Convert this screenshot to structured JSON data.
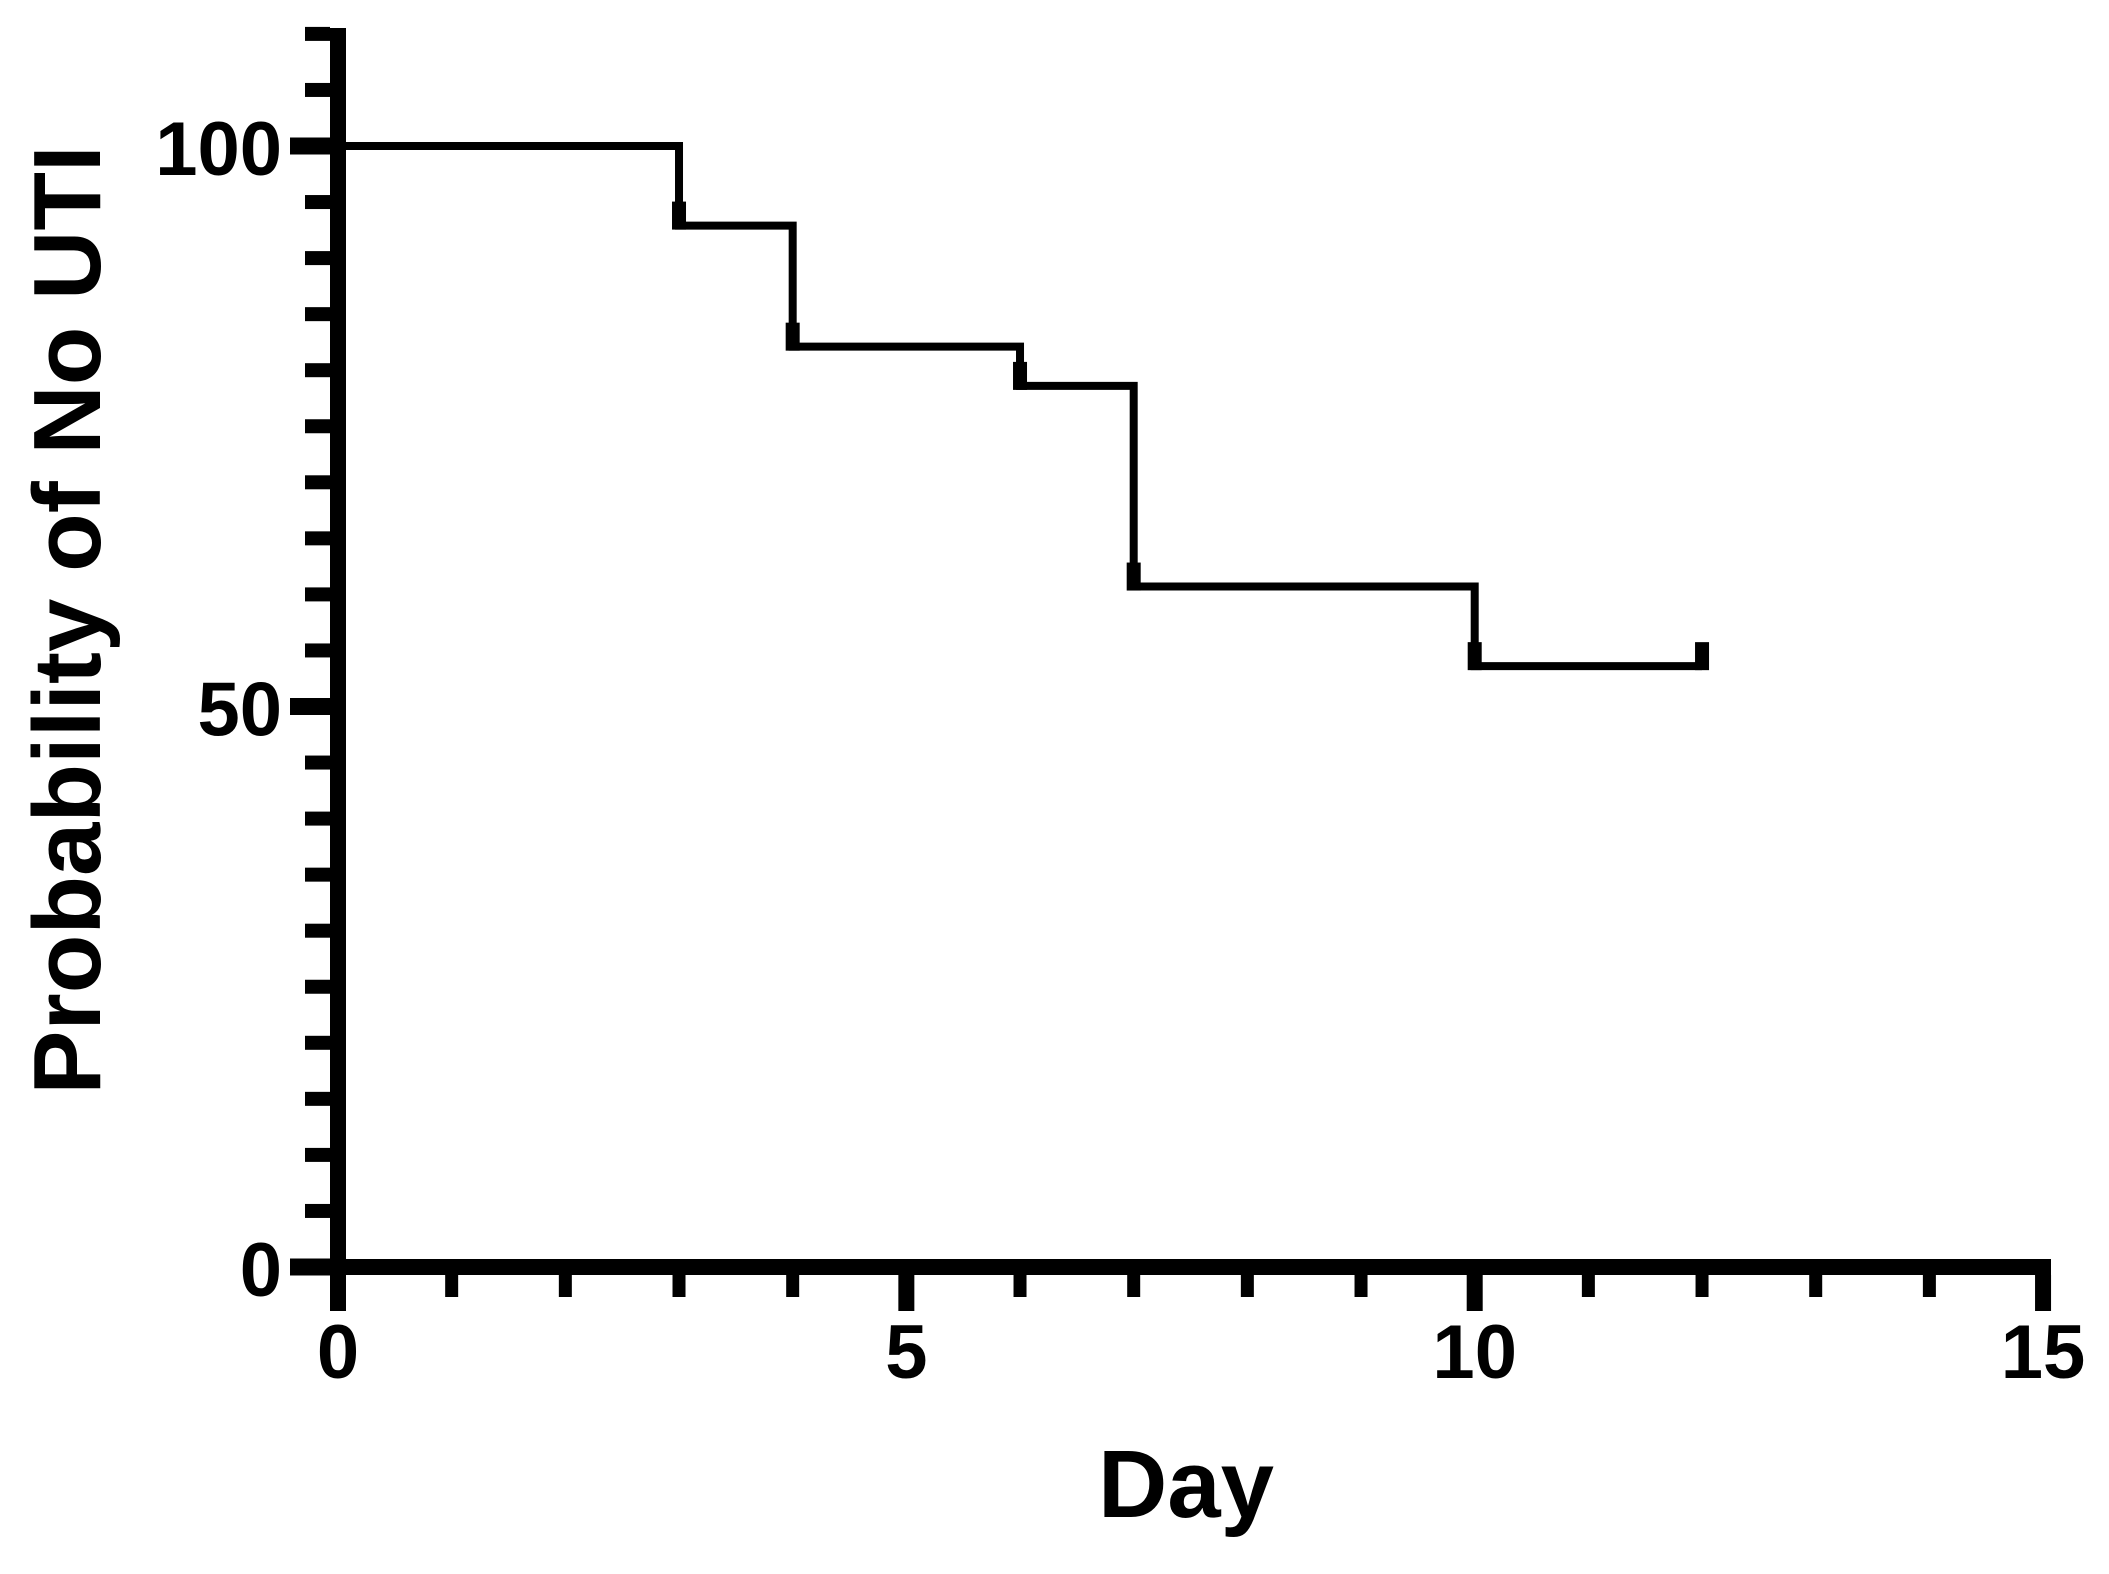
{
  "figure": {
    "background_color": "#ffffff",
    "foreground_color": "#000000"
  },
  "chart_data": {
    "type": "line",
    "subtype": "kaplan-meier-step",
    "title": "",
    "xlabel": "Day",
    "ylabel": "Probability of No UTI",
    "xlim": [
      0,
      15
    ],
    "ylim": [
      0,
      110
    ],
    "grid": false,
    "legend": "none",
    "axis_color": "#000000",
    "x_major_ticks": [
      {
        "value": 0,
        "label": "0"
      },
      {
        "value": 5,
        "label": "5"
      },
      {
        "value": 10,
        "label": "10"
      },
      {
        "value": 15,
        "label": "15"
      }
    ],
    "x_minor_step": 1,
    "y_major_ticks": [
      {
        "value": 0,
        "label": "0"
      },
      {
        "value": 50,
        "label": "50"
      },
      {
        "value": 100,
        "label": "100"
      }
    ],
    "y_minor_step": 5,
    "series": [
      {
        "name": "Probability of No UTI",
        "color": "#000000",
        "steps": [
          {
            "day": 0,
            "probability": 100
          },
          {
            "day": 3,
            "probability": 92.9
          },
          {
            "day": 4,
            "probability": 82.1
          },
          {
            "day": 6,
            "probability": 78.6
          },
          {
            "day": 7,
            "probability": 60.7
          },
          {
            "day": 10,
            "probability": 53.6
          }
        ],
        "end_day": 12,
        "censor_marks": [
          {
            "day": 3,
            "probability": 92.9
          },
          {
            "day": 4,
            "probability": 82.1
          },
          {
            "day": 6,
            "probability": 78.6
          },
          {
            "day": 7,
            "probability": 60.7
          },
          {
            "day": 10,
            "probability": 53.6
          },
          {
            "day": 12,
            "probability": 53.6
          }
        ]
      }
    ]
  }
}
